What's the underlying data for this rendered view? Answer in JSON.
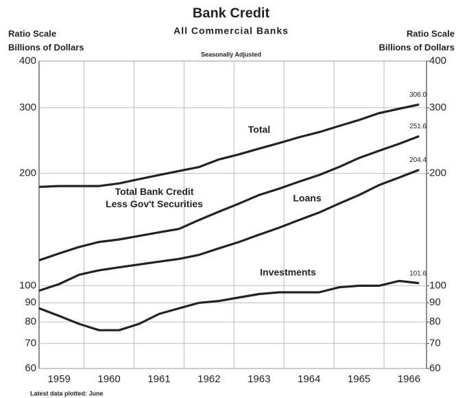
{
  "chart_data": {
    "type": "line",
    "title": "Bank Credit",
    "subtitle": "All Commercial Banks",
    "note": "Seasonally Adjusted",
    "ylabel": [
      "Ratio Scale",
      "Billions of Dollars"
    ],
    "y2label": [
      "Ratio Scale",
      "Billions of Dollars"
    ],
    "footnote": "Latest data plotted: June",
    "log_y": true,
    "grid": true,
    "color": "#222222",
    "x": [
      1959.1,
      1959.5,
      1959.9,
      1960.3,
      1960.7,
      1961.1,
      1961.5,
      1961.9,
      1962.3,
      1962.7,
      1963.1,
      1963.5,
      1963.9,
      1964.3,
      1964.7,
      1965.1,
      1965.5,
      1965.9,
      1966.3,
      1966.7
    ],
    "xlim": [
      1959.1,
      1966.85
    ],
    "xgrid": [
      1960,
      1961,
      1962,
      1963,
      1964,
      1965,
      1966
    ],
    "xticks": [
      {
        "value": 1959.5,
        "label": "1959"
      },
      {
        "value": 1960.5,
        "label": "1960"
      },
      {
        "value": 1961.5,
        "label": "1961"
      },
      {
        "value": 1962.5,
        "label": "1962"
      },
      {
        "value": 1963.5,
        "label": "1963"
      },
      {
        "value": 1964.5,
        "label": "1964"
      },
      {
        "value": 1965.5,
        "label": "1965"
      },
      {
        "value": 1966.5,
        "label": "1966"
      }
    ],
    "ylim": [
      60,
      400
    ],
    "yticks": [
      60,
      70,
      80,
      90,
      100,
      200,
      300,
      400
    ],
    "y2lim": [
      60,
      400
    ],
    "y2ticks": [
      60,
      70,
      80,
      90,
      100,
      200,
      300,
      400
    ],
    "series": [
      {
        "name": "Total",
        "values": [
          184,
          185,
          185,
          185,
          188,
          193,
          198,
          203,
          208,
          218,
          225,
          233,
          241,
          250,
          258,
          268,
          278,
          290,
          298,
          306
        ],
        "value_labels": [
          null,
          null,
          null,
          null,
          null,
          null,
          null,
          null,
          null,
          null,
          null,
          null,
          null,
          null,
          null,
          null,
          null,
          null,
          null,
          "306.0"
        ]
      },
      {
        "name": "Total Bank Credit\nLess Gov't Securities",
        "values": [
          117,
          122,
          127,
          131,
          133,
          136,
          139,
          142,
          150,
          158,
          166,
          175,
          182,
          190,
          198,
          208,
          220,
          230,
          240,
          251.6
        ],
        "value_labels": [
          null,
          null,
          null,
          null,
          null,
          null,
          null,
          null,
          null,
          null,
          null,
          null,
          null,
          null,
          null,
          null,
          null,
          null,
          null,
          "251.6"
        ]
      },
      {
        "name": "Loans",
        "values": [
          97,
          101,
          107,
          110,
          112,
          114,
          116,
          118,
          121,
          126,
          131,
          137,
          143,
          150,
          157,
          166,
          175,
          186,
          195,
          204.4
        ],
        "value_labels": [
          null,
          null,
          null,
          null,
          null,
          null,
          null,
          null,
          null,
          null,
          null,
          null,
          null,
          null,
          null,
          null,
          null,
          null,
          null,
          "204.4"
        ]
      },
      {
        "name": "Investments",
        "values": [
          87,
          83,
          79,
          76,
          76,
          79,
          84,
          87,
          90,
          91,
          93,
          95,
          96,
          96,
          96,
          99,
          100,
          100,
          103,
          101.6
        ],
        "value_labels": [
          null,
          null,
          null,
          null,
          null,
          null,
          null,
          null,
          null,
          null,
          null,
          null,
          null,
          null,
          null,
          null,
          null,
          null,
          null,
          "101.6"
        ]
      }
    ]
  }
}
